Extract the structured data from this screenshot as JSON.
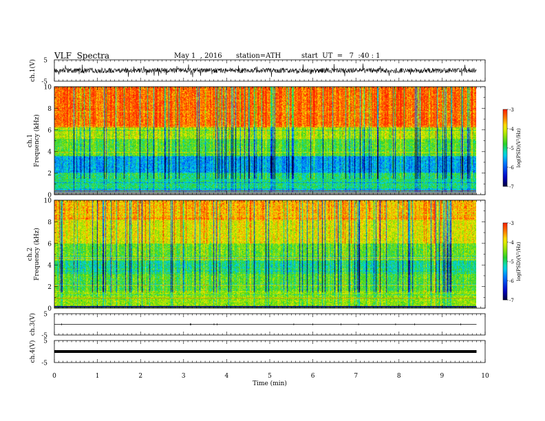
{
  "header": {
    "title": "VLF  Spectra",
    "date": "May 1  , 2016",
    "station": "station=ATH",
    "start": "start  UT  =   7  :40 : 1"
  },
  "chart_data": [
    {
      "type": "line",
      "panel": "ch1-waveform",
      "ylabel": "ch.1(V)",
      "ylim": [
        -5,
        5
      ],
      "yticks": [
        "5",
        "-5"
      ],
      "description_values": {
        "baseline": 0,
        "amplitude": 2
      }
    },
    {
      "type": "heatmap",
      "panel": "ch1-spectrogram",
      "ylabel_top": "ch.1",
      "ylabel": "Frequency  (kHz)",
      "ylim": [
        0,
        10
      ],
      "yticks": [
        "0",
        "2",
        "4",
        "6",
        "8",
        "10"
      ],
      "colorbar": {
        "label": "log(PSD)(V²/Hz)",
        "ticks": [
          "-3",
          "-4",
          "-5",
          "-6",
          "-7"
        ],
        "range": [
          -7,
          -3
        ]
      }
    },
    {
      "type": "heatmap",
      "panel": "ch2-spectrogram",
      "ylabel_top": "ch.2",
      "ylabel": "Frequency  (kHz)",
      "ylim": [
        0,
        10
      ],
      "yticks": [
        "0",
        "2",
        "4",
        "6",
        "8",
        "10"
      ],
      "colorbar": {
        "label": "log(PSD)(V²/Hz)",
        "ticks": [
          "-3",
          "-4",
          "-5",
          "-6",
          "-7"
        ],
        "range": [
          -7,
          -3
        ]
      }
    },
    {
      "type": "line",
      "panel": "ch3-waveform",
      "ylabel": "ch.3(V)",
      "ylim": [
        -5,
        5
      ],
      "yticks": [
        "5",
        "-5"
      ],
      "description_values": {
        "baseline": 0
      }
    },
    {
      "type": "line",
      "panel": "ch4-waveform",
      "ylabel": "ch.4(V)",
      "ylim": [
        -5,
        5
      ],
      "yticks": [
        "5",
        "-5"
      ],
      "description_values": {
        "baseline": 0
      }
    }
  ],
  "xaxis": {
    "label": "Time  (min)",
    "xlim": [
      0,
      10
    ],
    "ticks": [
      "0",
      "1",
      "2",
      "3",
      "4",
      "5",
      "6",
      "7",
      "8",
      "9",
      "10"
    ],
    "data_end": 9.8
  },
  "colors": {
    "red": "#ff2a00",
    "yellow": "#f4e300",
    "green": "#3ccf2a",
    "cyan": "#00d8e8",
    "blue": "#0010c8",
    "darkblue": "#000060"
  }
}
